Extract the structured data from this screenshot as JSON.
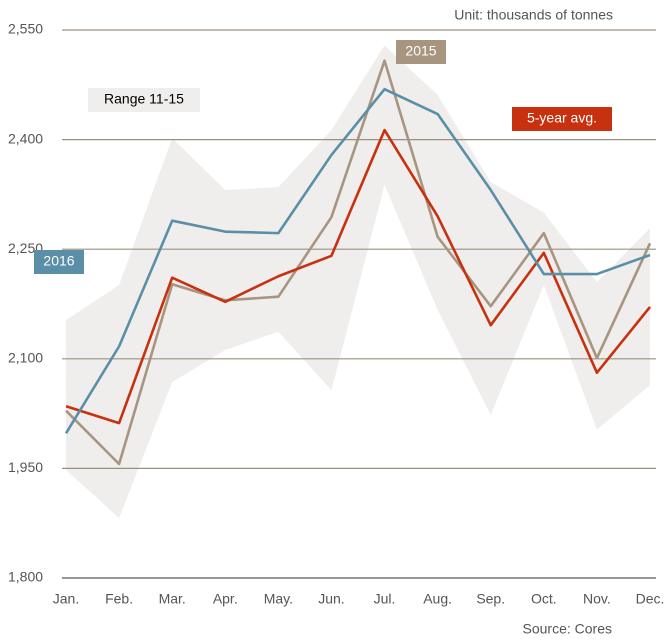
{
  "chart_data": {
    "type": "line",
    "subtitle": "Unit: thousands of tonnes",
    "source": "Source: Cores",
    "categories": [
      "Jan.",
      "Feb.",
      "Mar.",
      "Apr.",
      "May.",
      "Jun.",
      "Jul.",
      "Aug.",
      "Sep.",
      "Oct.",
      "Nov.",
      "Dec."
    ],
    "range": {
      "name": "Range 11-15",
      "color": "#f0eeed",
      "low": [
        1948,
        1882,
        2068,
        2112,
        2137,
        2057,
        2338,
        2167,
        2023,
        2201,
        2003,
        2064
      ],
      "high": [
        2153,
        2201,
        2402,
        2331,
        2335,
        2413,
        2529,
        2461,
        2342,
        2300,
        2205,
        2279
      ]
    },
    "series": [
      {
        "name": "2015",
        "color": "#a89580",
        "values": [
          2029,
          1956,
          2202,
          2180,
          2185,
          2294,
          2508,
          2267,
          2172,
          2272,
          2101,
          2258
        ]
      },
      {
        "name": "5-year avg.",
        "color": "#c8310f",
        "values": [
          2035,
          2012,
          2211,
          2178,
          2213,
          2241,
          2413,
          2295,
          2146,
          2245,
          2081,
          2171
        ]
      },
      {
        "name": "2016",
        "color": "#5b8fa8",
        "values": [
          1998,
          2117,
          2289,
          2274,
          2272,
          2379,
          2469,
          2435,
          2331,
          2216,
          2216,
          2242
        ]
      }
    ],
    "ylim": [
      1800,
      2550
    ],
    "yticks": [
      {
        "value": 1800,
        "label": "1,800"
      },
      {
        "value": 1950,
        "label": "1,950"
      },
      {
        "value": 2100,
        "label": "2,100"
      },
      {
        "value": 2250,
        "label": "2,250"
      },
      {
        "value": 2400,
        "label": "2,400"
      },
      {
        "value": 2550,
        "label": "2,550"
      }
    ],
    "grid": true
  }
}
